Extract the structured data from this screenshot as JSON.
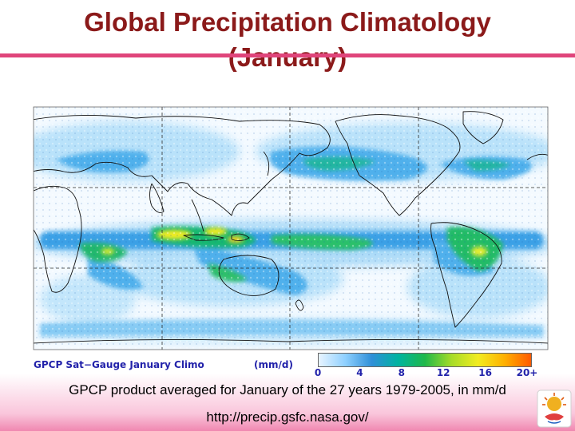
{
  "slide": {
    "title_line1": "Global Precipitation Climatology",
    "title_line2": "(January)",
    "caption": "GPCP product averaged for January of the 27 years 1979-2005, in mm/d",
    "url": "http://precip.gsfc.nasa.gov/"
  },
  "map": {
    "label": "GPCP Sat−Gauge January Climo",
    "units": "(mm/d)",
    "colorbar": {
      "ticks": [
        "0",
        "4",
        "8",
        "12",
        "16",
        "20+"
      ],
      "colors": [
        "#e8f4ff",
        "#8fd0ff",
        "#2f8fd8",
        "#00b4a0",
        "#1fb84a",
        "#a6dc28",
        "#f2ec20",
        "#ffb000",
        "#ff5a00"
      ]
    },
    "colors": {
      "ocean_dry": "#f4faff",
      "light_rain": "#9fd6f7",
      "moderate_rain": "#3ba4e8",
      "heavy_rain": "#14b87a",
      "very_heavy_rain": "#f0e824",
      "grid": "#2a2a2a",
      "coast": "#111111"
    }
  },
  "colors": {
    "title": "#8b1a1a",
    "title_rule": "#e0457b",
    "map_text": "#2222aa"
  }
}
